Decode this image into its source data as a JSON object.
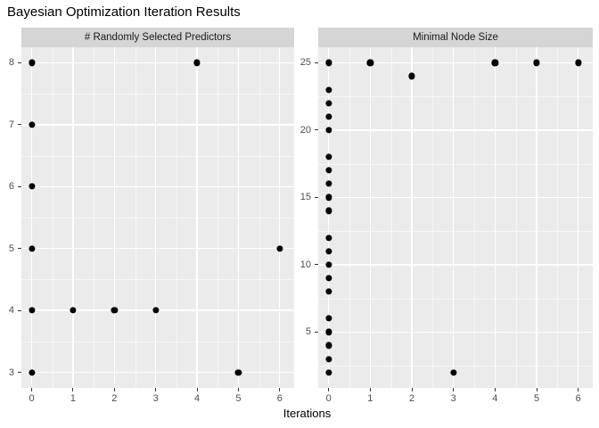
{
  "title": "Bayesian Optimization Iteration Results",
  "xlabel": "Iterations",
  "colors": {
    "panel_bg": "#ebebeb",
    "strip_bg": "#d5d5d5",
    "grid_major": "#ffffff",
    "grid_minor": "rgba(255,255,255,0.55)",
    "point": "#000000",
    "tick_text": "#4d4d4d",
    "strip_text": "#1a1a1a",
    "title_text": "#000000"
  },
  "chart_data": [
    {
      "type": "scatter",
      "facet_label": "# Randomly Selected Predictors",
      "xlabel": "Iterations",
      "x_ticks": [
        0,
        1,
        2,
        3,
        4,
        5,
        6
      ],
      "x_minor": [
        0.5,
        1.5,
        2.5,
        3.5,
        4.5,
        5.5
      ],
      "y_ticks": [
        3,
        4,
        5,
        6,
        7,
        8
      ],
      "y_minor": [
        3.5,
        4.5,
        5.5,
        6.5,
        7.5
      ],
      "xlim": [
        -0.25,
        6.35
      ],
      "ylim": [
        2.75,
        8.25
      ],
      "grid": true,
      "points": [
        [
          0,
          3
        ],
        [
          0,
          4
        ],
        [
          0,
          5
        ],
        [
          0,
          6
        ],
        [
          0,
          7
        ],
        [
          0,
          8
        ],
        [
          1,
          4
        ],
        [
          2,
          4
        ],
        [
          3,
          4
        ],
        [
          4,
          8
        ],
        [
          5,
          3
        ],
        [
          6,
          5
        ]
      ]
    },
    {
      "type": "scatter",
      "facet_label": "Minimal Node Size",
      "xlabel": "Iterations",
      "x_ticks": [
        0,
        1,
        2,
        3,
        4,
        5,
        6
      ],
      "x_minor": [
        0.5,
        1.5,
        2.5,
        3.5,
        4.5,
        5.5
      ],
      "y_ticks": [
        5,
        10,
        15,
        20,
        25
      ],
      "y_minor": [
        2.5,
        7.5,
        12.5,
        17.5,
        22.5
      ],
      "xlim": [
        -0.25,
        6.35
      ],
      "ylim": [
        0.85,
        26.15
      ],
      "grid": true,
      "points": [
        [
          0,
          2
        ],
        [
          0,
          3
        ],
        [
          0,
          4
        ],
        [
          0,
          5
        ],
        [
          0,
          6
        ],
        [
          0,
          8
        ],
        [
          0,
          9
        ],
        [
          0,
          10
        ],
        [
          0,
          11
        ],
        [
          0,
          12
        ],
        [
          0,
          14
        ],
        [
          0,
          15
        ],
        [
          0,
          16
        ],
        [
          0,
          17
        ],
        [
          0,
          18
        ],
        [
          0,
          20
        ],
        [
          0,
          21
        ],
        [
          0,
          22
        ],
        [
          0,
          23
        ],
        [
          0,
          25
        ],
        [
          1,
          25
        ],
        [
          2,
          24
        ],
        [
          3,
          2
        ],
        [
          4,
          25
        ],
        [
          5,
          25
        ],
        [
          6,
          25
        ]
      ]
    }
  ]
}
